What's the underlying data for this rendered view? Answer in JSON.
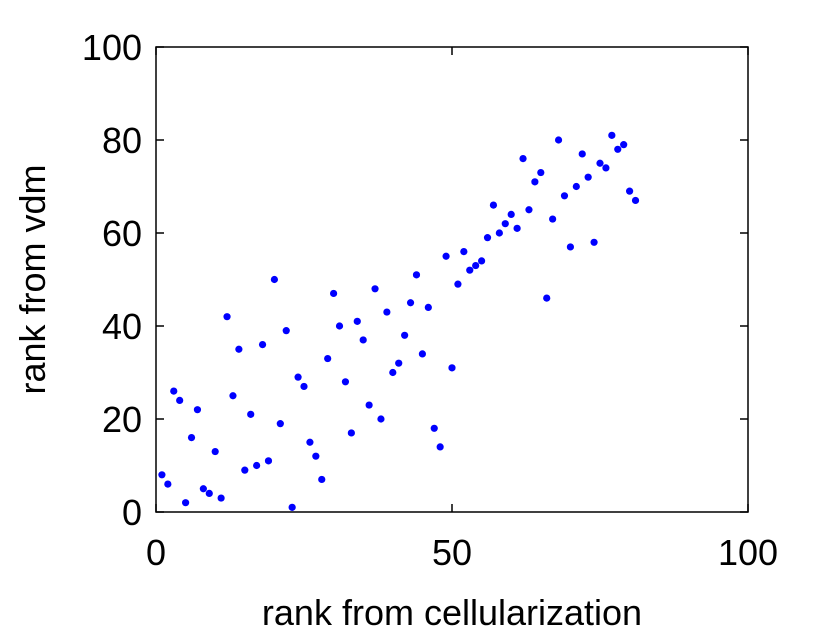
{
  "chart_data": {
    "type": "scatter",
    "title": "",
    "xlabel": "rank from cellularization",
    "ylabel": "rank from vdm",
    "xlim": [
      0,
      100
    ],
    "ylim": [
      0,
      100
    ],
    "xticks": [
      0,
      50,
      100
    ],
    "yticks": [
      0,
      20,
      40,
      60,
      80,
      100
    ],
    "grid": false,
    "box": true,
    "marker_color": "#0000ff",
    "series": [
      {
        "points": [
          [
            1,
            8
          ],
          [
            2,
            6
          ],
          [
            3,
            26
          ],
          [
            4,
            24
          ],
          [
            5,
            2
          ],
          [
            6,
            16
          ],
          [
            7,
            22
          ],
          [
            8,
            5
          ],
          [
            9,
            4
          ],
          [
            10,
            13
          ],
          [
            11,
            3
          ],
          [
            12,
            42
          ],
          [
            13,
            25
          ],
          [
            14,
            35
          ],
          [
            15,
            9
          ],
          [
            16,
            21
          ],
          [
            17,
            10
          ],
          [
            18,
            36
          ],
          [
            19,
            11
          ],
          [
            20,
            50
          ],
          [
            21,
            19
          ],
          [
            22,
            39
          ],
          [
            23,
            1
          ],
          [
            24,
            29
          ],
          [
            25,
            27
          ],
          [
            26,
            15
          ],
          [
            27,
            12
          ],
          [
            28,
            7
          ],
          [
            29,
            33
          ],
          [
            30,
            47
          ],
          [
            31,
            40
          ],
          [
            32,
            28
          ],
          [
            33,
            17
          ],
          [
            34,
            41
          ],
          [
            35,
            37
          ],
          [
            36,
            23
          ],
          [
            37,
            48
          ],
          [
            38,
            20
          ],
          [
            39,
            43
          ],
          [
            40,
            30
          ],
          [
            41,
            32
          ],
          [
            42,
            38
          ],
          [
            43,
            45
          ],
          [
            44,
            51
          ],
          [
            45,
            34
          ],
          [
            46,
            44
          ],
          [
            47,
            18
          ],
          [
            48,
            14
          ],
          [
            49,
            55
          ],
          [
            50,
            31
          ],
          [
            51,
            49
          ],
          [
            52,
            56
          ],
          [
            53,
            52
          ],
          [
            54,
            53
          ],
          [
            55,
            54
          ],
          [
            56,
            59
          ],
          [
            57,
            66
          ],
          [
            58,
            60
          ],
          [
            59,
            62
          ],
          [
            60,
            64
          ],
          [
            61,
            61
          ],
          [
            62,
            76
          ],
          [
            63,
            65
          ],
          [
            64,
            71
          ],
          [
            65,
            73
          ],
          [
            66,
            46
          ],
          [
            67,
            63
          ],
          [
            68,
            80
          ],
          [
            69,
            68
          ],
          [
            70,
            57
          ],
          [
            71,
            70
          ],
          [
            72,
            77
          ],
          [
            73,
            72
          ],
          [
            74,
            58
          ],
          [
            75,
            75
          ],
          [
            76,
            74
          ],
          [
            77,
            81
          ],
          [
            78,
            78
          ],
          [
            79,
            79
          ],
          [
            80,
            69
          ],
          [
            81,
            67
          ]
        ]
      }
    ]
  }
}
